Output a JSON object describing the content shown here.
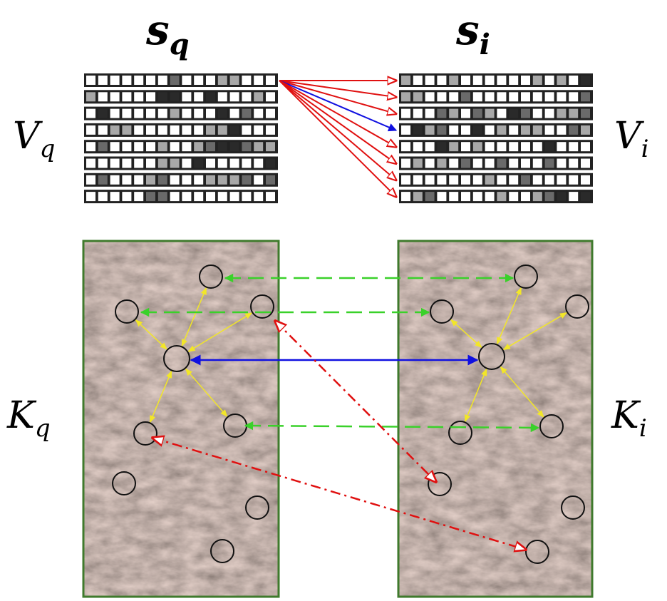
{
  "labels": {
    "sq": {
      "base": "s",
      "sub": "q"
    },
    "si": {
      "base": "s",
      "sub": "i"
    },
    "vq": {
      "base": "V",
      "sub": "q"
    },
    "vi": {
      "base": "V",
      "sub": "i"
    },
    "kq": {
      "base": "K",
      "sub": "q"
    },
    "ki": {
      "base": "K",
      "sub": "i"
    }
  }
}
